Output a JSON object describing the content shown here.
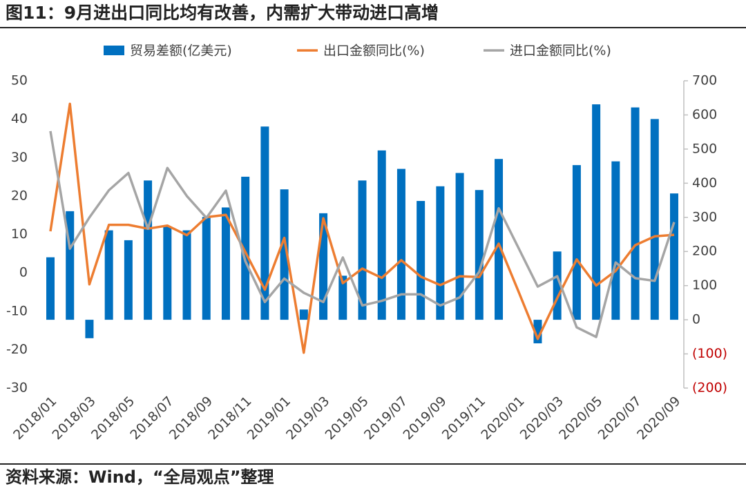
{
  "chart_data": {
    "type": "bar_line",
    "title": "图11：9月进出口同比均有改善，内需扩大带动进口高增",
    "source": "资料来源：Wind，“全局观点”整理",
    "categories": [
      "2018/01",
      null,
      "2018/03",
      null,
      "2018/05",
      null,
      "2018/07",
      null,
      "2018/09",
      null,
      "2018/11",
      null,
      "2019/01",
      null,
      "2019/03",
      null,
      "2019/05",
      null,
      "2019/07",
      null,
      "2019/09",
      null,
      "2019/11",
      null,
      "2020/01",
      null,
      "2020/03",
      null,
      "2020/05",
      null,
      "2020/07",
      null,
      "2020/09"
    ],
    "series": [
      {
        "name": "贸易差额(亿美元)",
        "type": "bar",
        "axis": "y2",
        "color": "#0070c0",
        "values": [
          183,
          318,
          -54,
          262,
          233,
          408,
          273,
          262,
          301,
          329,
          419,
          566,
          382,
          30,
          312,
          129,
          408,
          496,
          442,
          348,
          391,
          430,
          380,
          471,
          null,
          -69,
          200,
          453,
          631,
          464,
          622,
          588,
          370
        ]
      },
      {
        "name": "出口金额同比(%)",
        "type": "line",
        "color": "#ed7d31",
        "values": [
          10.8,
          44,
          -3,
          12.5,
          12.5,
          11.5,
          12.3,
          9.8,
          14.5,
          15.1,
          5.4,
          -4.4,
          9.1,
          -20.8,
          14.2,
          -2.7,
          1.1,
          -1.3,
          3.3,
          -1,
          -3.2,
          -0.9,
          -1.1,
          7.6,
          -4.7,
          -17.2,
          -6.6,
          3.5,
          -3.3,
          0.5,
          7.2,
          9.5,
          9.9
        ]
      },
      {
        "name": "进口金额同比(%)",
        "type": "line",
        "color": "#a5a5a5",
        "values": [
          36.9,
          6.3,
          14.4,
          21.5,
          26,
          11.5,
          27.3,
          20,
          14.3,
          21.4,
          3,
          -7.6,
          -1.5,
          -5.2,
          -7.6,
          4,
          -8.5,
          -7.3,
          -5.6,
          -5.6,
          -8.5,
          -6.4,
          0.3,
          16.8,
          6.6,
          -3.6,
          -0.9,
          -14.2,
          -16.7,
          2.7,
          -1.4,
          -2.1,
          13.2
        ]
      }
    ],
    "ylim": [
      -30,
      50
    ],
    "yticks": [
      -30,
      -20,
      -10,
      0,
      10,
      20,
      30,
      40,
      50
    ],
    "y2lim": [
      -200,
      700
    ],
    "y2ticks": [
      {
        "value": -200,
        "label": "(200)"
      },
      {
        "value": -100,
        "label": "(100)"
      },
      0,
      100,
      200,
      300,
      400,
      500,
      600,
      700
    ],
    "y2_negative_label_color": "#c00000",
    "legend": "top",
    "grid": false
  }
}
